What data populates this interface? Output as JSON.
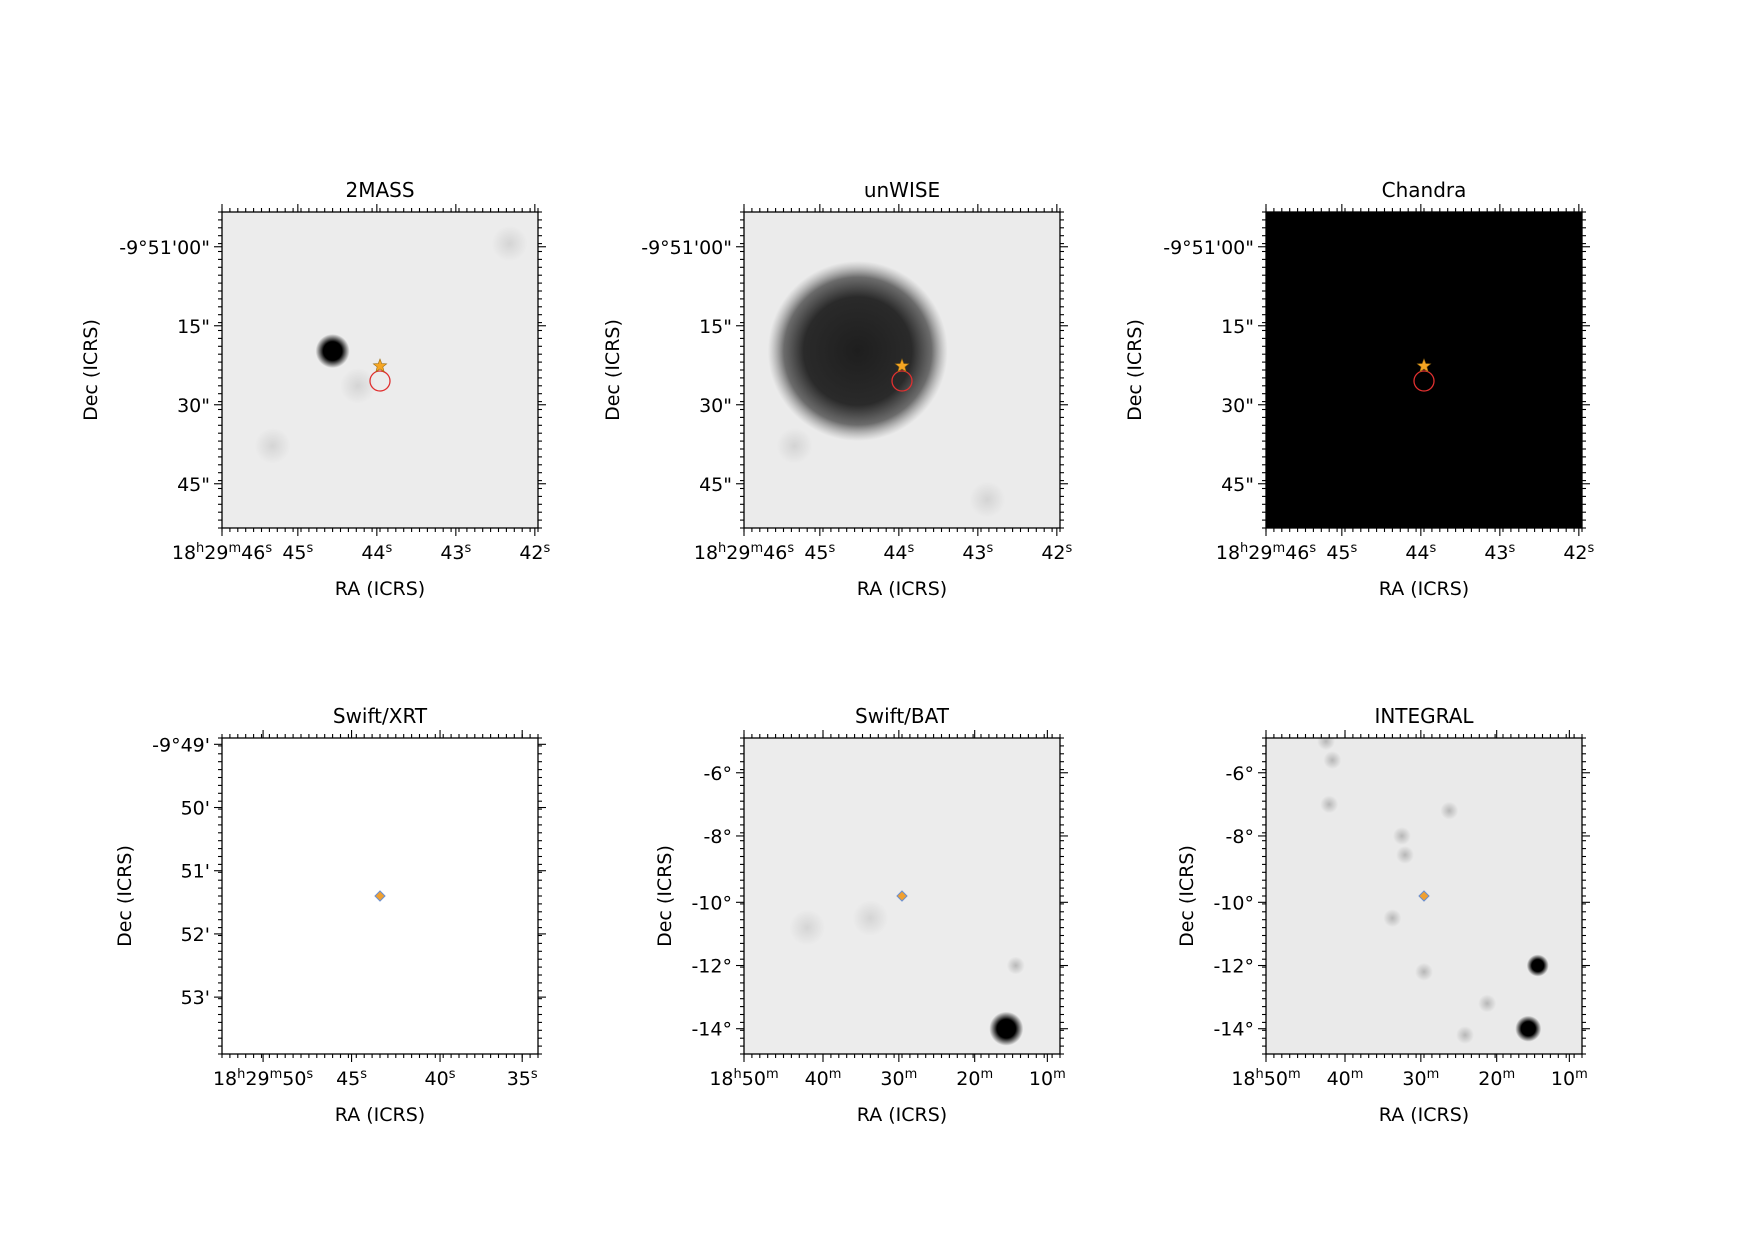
{
  "panels": [
    {
      "title": "2MASS",
      "xlabel": "RA (ICRS)",
      "ylabel": "Dec (ICRS)",
      "background": "#ececec",
      "xticks": [
        {
          "label": "18h29m46s",
          "parts": [
            [
              "18",
              ""
            ],
            [
              "h",
              "sup"
            ],
            [
              "29",
              ""
            ],
            [
              "m",
              "sup"
            ],
            [
              "46",
              ""
            ],
            [
              "s",
              "sup"
            ]
          ]
        },
        {
          "label": "45s",
          "parts": [
            [
              "45",
              ""
            ],
            [
              "s",
              "sup"
            ]
          ]
        },
        {
          "label": "44s",
          "parts": [
            [
              "44",
              ""
            ],
            [
              "s",
              "sup"
            ]
          ]
        },
        {
          "label": "43s",
          "parts": [
            [
              "43",
              ""
            ],
            [
              "s",
              "sup"
            ]
          ]
        },
        {
          "label": "42s",
          "parts": [
            [
              "42",
              ""
            ],
            [
              "s",
              "sup"
            ]
          ]
        }
      ],
      "yticks": [
        "-9°51'00\"",
        "15\"",
        "30\"",
        "45\""
      ],
      "sources": [
        {
          "kind": "blob",
          "x": 0.35,
          "y": 0.44,
          "intensity": "strong"
        },
        {
          "kind": "faint",
          "x": 0.43,
          "y": 0.55
        },
        {
          "kind": "faint",
          "x": 0.91,
          "y": 0.1
        },
        {
          "kind": "faint",
          "x": 0.16,
          "y": 0.74
        }
      ],
      "markers": {
        "star": true,
        "circle": true,
        "diamond": false
      }
    },
    {
      "title": "unWISE",
      "xlabel": "RA (ICRS)",
      "ylabel": "Dec (ICRS)",
      "background": "#ebebeb",
      "xticks": [
        {
          "label": "18h29m46s",
          "parts": [
            [
              "18",
              ""
            ],
            [
              "h",
              "sup"
            ],
            [
              "29",
              ""
            ],
            [
              "m",
              "sup"
            ],
            [
              "46",
              ""
            ],
            [
              "s",
              "sup"
            ]
          ]
        },
        {
          "label": "45s",
          "parts": [
            [
              "45",
              ""
            ],
            [
              "s",
              "sup"
            ]
          ]
        },
        {
          "label": "44s",
          "parts": [
            [
              "44",
              ""
            ],
            [
              "s",
              "sup"
            ]
          ]
        },
        {
          "label": "43s",
          "parts": [
            [
              "43",
              ""
            ],
            [
              "s",
              "sup"
            ]
          ]
        },
        {
          "label": "42s",
          "parts": [
            [
              "42",
              ""
            ],
            [
              "s",
              "sup"
            ]
          ]
        }
      ],
      "yticks": [
        "-9°51'00\"",
        "15\"",
        "30\"",
        "45\""
      ],
      "sources": [
        {
          "kind": "bigblob",
          "x": 0.36,
          "y": 0.44
        },
        {
          "kind": "faint",
          "x": 0.16,
          "y": 0.74
        },
        {
          "kind": "faint",
          "x": 0.77,
          "y": 0.91
        }
      ],
      "markers": {
        "star": true,
        "circle": true,
        "diamond": false
      }
    },
    {
      "title": "Chandra",
      "xlabel": "RA (ICRS)",
      "ylabel": "Dec (ICRS)",
      "background": "#000000",
      "xticks": [
        {
          "label": "18h29m46s",
          "parts": [
            [
              "18",
              ""
            ],
            [
              "h",
              "sup"
            ],
            [
              "29",
              ""
            ],
            [
              "m",
              "sup"
            ],
            [
              "46",
              ""
            ],
            [
              "s",
              "sup"
            ]
          ]
        },
        {
          "label": "45s",
          "parts": [
            [
              "45",
              ""
            ],
            [
              "s",
              "sup"
            ]
          ]
        },
        {
          "label": "44s",
          "parts": [
            [
              "44",
              ""
            ],
            [
              "s",
              "sup"
            ]
          ]
        },
        {
          "label": "43s",
          "parts": [
            [
              "43",
              ""
            ],
            [
              "s",
              "sup"
            ]
          ]
        },
        {
          "label": "42s",
          "parts": [
            [
              "42",
              ""
            ],
            [
              "s",
              "sup"
            ]
          ]
        }
      ],
      "yticks": [
        "-9°51'00\"",
        "15\"",
        "30\"",
        "45\""
      ],
      "sources": [],
      "markers": {
        "star": true,
        "circle": true,
        "diamond": false
      }
    },
    {
      "title": "Swift/XRT",
      "xlabel": "RA (ICRS)",
      "ylabel": "Dec (ICRS)",
      "background": "#ffffff",
      "xticks": [
        {
          "label": "18h29m50s",
          "parts": [
            [
              "18",
              ""
            ],
            [
              "h",
              "sup"
            ],
            [
              "29",
              ""
            ],
            [
              "m",
              "sup"
            ],
            [
              "50",
              ""
            ],
            [
              "s",
              "sup"
            ]
          ]
        },
        {
          "label": "45s",
          "parts": [
            [
              "45",
              ""
            ],
            [
              "s",
              "sup"
            ]
          ]
        },
        {
          "label": "40s",
          "parts": [
            [
              "40",
              ""
            ],
            [
              "s",
              "sup"
            ]
          ]
        },
        {
          "label": "35s",
          "parts": [
            [
              "35",
              ""
            ],
            [
              "s",
              "sup"
            ]
          ]
        }
      ],
      "yticks": [
        "-9°49'",
        "50'",
        "51'",
        "52'",
        "53'"
      ],
      "sources": [],
      "markers": {
        "star": false,
        "circle": false,
        "diamond": true
      }
    },
    {
      "title": "Swift/BAT",
      "xlabel": "RA (ICRS)",
      "ylabel": "Dec (ICRS)",
      "background": "#ececec",
      "xticks": [
        {
          "label": "18h50m",
          "parts": [
            [
              "18",
              ""
            ],
            [
              "h",
              "sup"
            ],
            [
              "50",
              ""
            ],
            [
              "m",
              "sup"
            ]
          ]
        },
        {
          "label": "40m",
          "parts": [
            [
              "40",
              ""
            ],
            [
              "m",
              "sup"
            ]
          ]
        },
        {
          "label": "30m",
          "parts": [
            [
              "30",
              ""
            ],
            [
              "m",
              "sup"
            ]
          ]
        },
        {
          "label": "20m",
          "parts": [
            [
              "20",
              ""
            ],
            [
              "m",
              "sup"
            ]
          ]
        },
        {
          "label": "10m",
          "parts": [
            [
              "10",
              ""
            ],
            [
              "m",
              "sup"
            ]
          ]
        }
      ],
      "yticks": [
        "-6°",
        "-8°",
        "-10°",
        "-12°",
        "-14°"
      ],
      "sources": [
        {
          "kind": "blob",
          "x": 0.83,
          "y": 0.92,
          "intensity": "strong"
        },
        {
          "kind": "faintdot",
          "x": 0.86,
          "y": 0.72
        },
        {
          "kind": "faint",
          "x": 0.4,
          "y": 0.57
        },
        {
          "kind": "faint",
          "x": 0.2,
          "y": 0.6
        }
      ],
      "markers": {
        "star": false,
        "circle": false,
        "diamond": true
      }
    },
    {
      "title": "INTEGRAL",
      "xlabel": "RA (ICRS)",
      "ylabel": "Dec (ICRS)",
      "background": "#eaeaea",
      "xticks": [
        {
          "label": "18h50m",
          "parts": [
            [
              "18",
              ""
            ],
            [
              "h",
              "sup"
            ],
            [
              "50",
              ""
            ],
            [
              "m",
              "sup"
            ]
          ]
        },
        {
          "label": "40m",
          "parts": [
            [
              "40",
              ""
            ],
            [
              "m",
              "sup"
            ]
          ]
        },
        {
          "label": "30m",
          "parts": [
            [
              "30",
              ""
            ],
            [
              "m",
              "sup"
            ]
          ]
        },
        {
          "label": "20m",
          "parts": [
            [
              "20",
              ""
            ],
            [
              "m",
              "sup"
            ]
          ]
        },
        {
          "label": "10m",
          "parts": [
            [
              "10",
              ""
            ],
            [
              "m",
              "sup"
            ]
          ]
        }
      ],
      "yticks": [
        "-6°",
        "-8°",
        "-10°",
        "-12°",
        "-14°"
      ],
      "sources": [
        {
          "kind": "blob",
          "x": 0.83,
          "y": 0.92,
          "intensity": "medium"
        },
        {
          "kind": "blob",
          "x": 0.86,
          "y": 0.72,
          "intensity": "small"
        },
        {
          "kind": "faintdot",
          "x": 0.4,
          "y": 0.57
        },
        {
          "kind": "faintdot",
          "x": 0.2,
          "y": 0.21
        },
        {
          "kind": "faintdot",
          "x": 0.43,
          "y": 0.31
        },
        {
          "kind": "faintdot",
          "x": 0.21,
          "y": 0.07
        },
        {
          "kind": "faintdot",
          "x": 0.19,
          "y": 0.01
        },
        {
          "kind": "faintdot",
          "x": 0.58,
          "y": 0.23
        },
        {
          "kind": "faintdot",
          "x": 0.7,
          "y": 0.84
        },
        {
          "kind": "faintdot",
          "x": 0.63,
          "y": 0.94
        },
        {
          "kind": "faintdot",
          "x": 0.5,
          "y": 0.74
        },
        {
          "kind": "faintdot",
          "x": 0.44,
          "y": 0.37
        }
      ],
      "markers": {
        "star": false,
        "circle": false,
        "diamond": true
      }
    }
  ],
  "colors": {
    "star": "#f5a623",
    "circle": "#e03030",
    "diamond": "#f0a030",
    "diamond_edge": "#6a8fd0"
  }
}
